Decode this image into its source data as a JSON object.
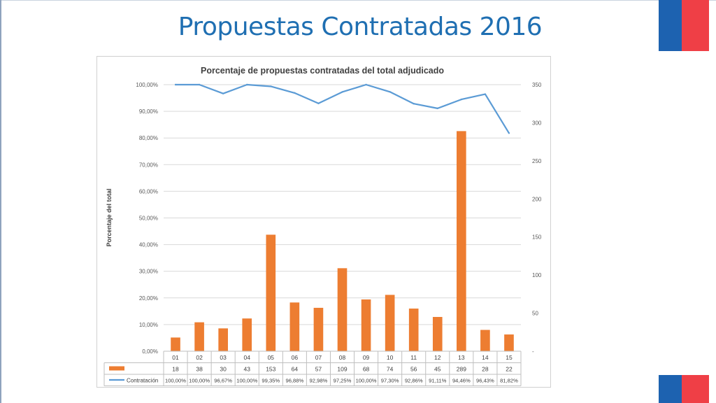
{
  "slide": {
    "title": "Propuestas Contratadas 2016",
    "colors": {
      "title": "#1f6fb2",
      "flag_blue": "#1d62b0",
      "flag_red": "#ef3f46"
    }
  },
  "chart_data": {
    "type": "bar",
    "title": "Porcentaje de propuestas contratadas del total adjudicado",
    "ylabel": "Porcentaje del total",
    "xlabel": "",
    "ylim": [
      0,
      100
    ],
    "y2lim": [
      0,
      350
    ],
    "y_ticks": [
      "0,00%",
      "10,00%",
      "20,00%",
      "30,00%",
      "40,00%",
      "50,00%",
      "60,00%",
      "70,00%",
      "80,00%",
      "90,00%",
      "100,00%"
    ],
    "y2_ticks": [
      "-",
      "50",
      "100",
      "150",
      "200",
      "250",
      "300",
      "350"
    ],
    "categories": [
      "01",
      "02",
      "03",
      "04",
      "05",
      "06",
      "07",
      "08",
      "09",
      "10",
      "11",
      "12",
      "13",
      "14",
      "15"
    ],
    "grid": true,
    "legend": "data-table-bottom",
    "series": [
      {
        "name": "",
        "type": "bar",
        "axis": "right",
        "color": "#ed7d31",
        "values": [
          18,
          38,
          30,
          43,
          153,
          64,
          57,
          109,
          68,
          74,
          56,
          45,
          289,
          28,
          22
        ],
        "labels": [
          "18",
          "38",
          "30",
          "43",
          "153",
          "64",
          "57",
          "109",
          "68",
          "74",
          "56",
          "45",
          "289",
          "28",
          "22"
        ]
      },
      {
        "name": "Contratación",
        "type": "line",
        "axis": "left",
        "color": "#5b9bd5",
        "values": [
          100.0,
          100.0,
          96.67,
          100.0,
          99.35,
          96.88,
          92.98,
          97.25,
          100.0,
          97.3,
          92.86,
          91.11,
          94.46,
          96.43,
          81.82
        ],
        "labels": [
          "100,00%",
          "100,00%",
          "96,67%",
          "100,00%",
          "99,35%",
          "96,88%",
          "92,98%",
          "97,25%",
          "100,00%",
          "97,30%",
          "92,86%",
          "91,11%",
          "94,46%",
          "96,43%",
          "81,82%"
        ]
      }
    ]
  }
}
